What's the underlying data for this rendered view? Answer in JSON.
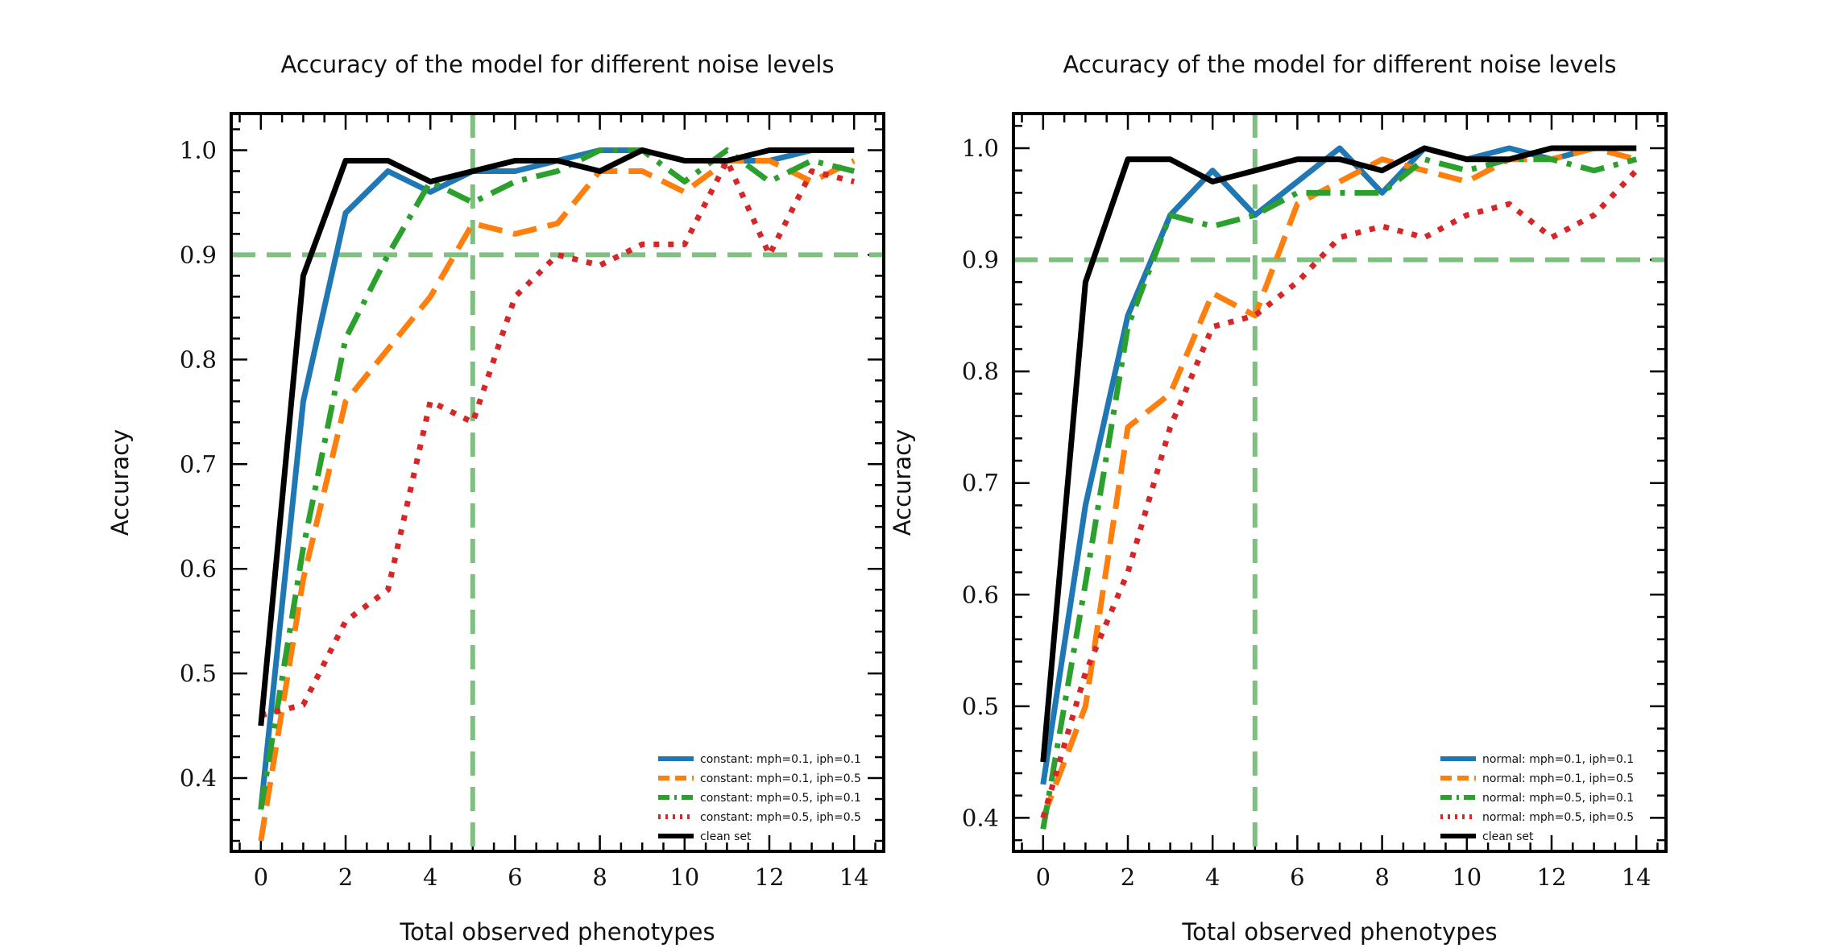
{
  "chart_data": [
    {
      "type": "line",
      "title": "Accuracy of the model for different noise levels",
      "xlabel": "Total observed phenotypes",
      "ylabel": "Accuracy",
      "xlim": [
        -0.7,
        14.7
      ],
      "ylim": [
        0.33,
        1.035
      ],
      "xticks": [
        0,
        2,
        4,
        6,
        8,
        10,
        12,
        14
      ],
      "yticks": [
        0.4,
        0.5,
        0.6,
        0.7,
        0.8,
        0.9,
        1.0
      ],
      "ytick_labels": [
        "0.4",
        "0.5",
        "0.6",
        "0.7",
        "0.8",
        "0.9",
        "1.0"
      ],
      "grid": false,
      "legend_position": "lower-right",
      "reference_lines": {
        "hline": 0.9,
        "vline": 5,
        "color": "#7fbf7f"
      },
      "x": [
        0,
        1,
        2,
        3,
        4,
        5,
        6,
        7,
        8,
        9,
        10,
        11,
        12,
        13,
        14
      ],
      "series": [
        {
          "name": "constant: mph=0.1, iph=0.1",
          "color": "#1f77b4",
          "style": "solid",
          "values": [
            0.37,
            0.76,
            0.94,
            0.98,
            0.96,
            0.98,
            0.98,
            0.99,
            1.0,
            1.0,
            0.99,
            0.99,
            0.99,
            1.0,
            1.0
          ]
        },
        {
          "name": "constant: mph=0.1, iph=0.5",
          "color": "#ff7f0e",
          "style": "dashed",
          "values": [
            0.34,
            0.59,
            0.76,
            0.81,
            0.86,
            0.93,
            0.92,
            0.93,
            0.98,
            0.98,
            0.96,
            0.99,
            0.99,
            0.97,
            0.99
          ]
        },
        {
          "name": "constant: mph=0.5, iph=0.1",
          "color": "#2ca02c",
          "style": "dashdot",
          "values": [
            0.37,
            0.62,
            0.82,
            0.9,
            0.97,
            0.95,
            0.97,
            0.98,
            1.0,
            1.0,
            0.97,
            1.0,
            0.97,
            0.99,
            0.98
          ]
        },
        {
          "name": "constant: mph=0.5, iph=0.5",
          "color": "#d62728",
          "style": "dotted",
          "values": [
            0.46,
            0.47,
            0.55,
            0.58,
            0.76,
            0.74,
            0.86,
            0.9,
            0.89,
            0.91,
            0.91,
            0.99,
            0.9,
            0.98,
            0.97
          ]
        },
        {
          "name": "clean set",
          "color": "#000000",
          "style": "solid",
          "values": [
            0.45,
            0.88,
            0.99,
            0.99,
            0.97,
            0.98,
            0.99,
            0.99,
            0.98,
            1.0,
            0.99,
            0.99,
            1.0,
            1.0,
            1.0
          ]
        }
      ]
    },
    {
      "type": "line",
      "title": "Accuracy of the model for different noise levels",
      "xlabel": "Total observed phenotypes",
      "ylabel": "Accuracy",
      "xlim": [
        -0.7,
        14.7
      ],
      "ylim": [
        0.37,
        1.031
      ],
      "xticks": [
        0,
        2,
        4,
        6,
        8,
        10,
        12,
        14
      ],
      "yticks": [
        0.4,
        0.5,
        0.6,
        0.7,
        0.8,
        0.9,
        1.0
      ],
      "ytick_labels": [
        "0.4",
        "0.5",
        "0.6",
        "0.7",
        "0.8",
        "0.9",
        "1.0"
      ],
      "grid": false,
      "legend_position": "lower-right",
      "reference_lines": {
        "hline": 0.9,
        "vline": 5,
        "color": "#7fbf7f"
      },
      "x": [
        0,
        1,
        2,
        3,
        4,
        5,
        6,
        7,
        8,
        9,
        10,
        11,
        12,
        13,
        14
      ],
      "series": [
        {
          "name": "normal: mph=0.1, iph=0.1",
          "color": "#1f77b4",
          "style": "solid",
          "values": [
            0.43,
            0.68,
            0.85,
            0.94,
            0.98,
            0.94,
            0.97,
            1.0,
            0.96,
            1.0,
            0.99,
            1.0,
            0.99,
            1.0,
            1.0
          ]
        },
        {
          "name": "normal: mph=0.1, iph=0.5",
          "color": "#ff7f0e",
          "style": "dashed",
          "values": [
            0.4,
            0.5,
            0.75,
            0.78,
            0.87,
            0.85,
            0.95,
            0.97,
            0.99,
            0.98,
            0.97,
            0.99,
            0.99,
            1.0,
            0.99
          ]
        },
        {
          "name": "normal: mph=0.5, iph=0.1",
          "color": "#2ca02c",
          "style": "dashdot",
          "values": [
            0.39,
            0.61,
            0.84,
            0.94,
            0.93,
            0.94,
            0.96,
            0.96,
            0.96,
            0.99,
            0.98,
            0.99,
            0.99,
            0.98,
            0.99
          ]
        },
        {
          "name": "normal: mph=0.5, iph=0.5",
          "color": "#d62728",
          "style": "dotted",
          "values": [
            0.4,
            0.53,
            0.62,
            0.75,
            0.84,
            0.85,
            0.88,
            0.92,
            0.93,
            0.92,
            0.94,
            0.95,
            0.92,
            0.94,
            0.98
          ]
        },
        {
          "name": "clean set",
          "color": "#000000",
          "style": "solid",
          "values": [
            0.45,
            0.88,
            0.99,
            0.99,
            0.97,
            0.98,
            0.99,
            0.99,
            0.98,
            1.0,
            0.99,
            0.99,
            1.0,
            1.0,
            1.0
          ]
        }
      ]
    }
  ]
}
